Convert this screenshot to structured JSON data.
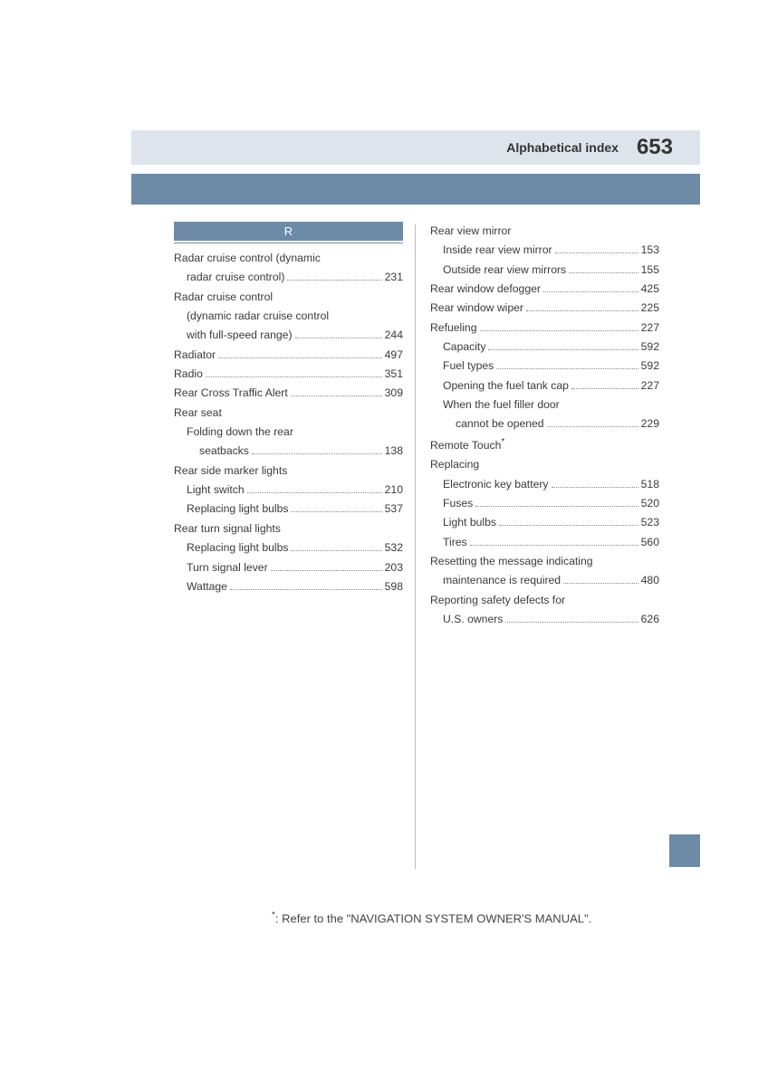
{
  "colors": {
    "header_bg": "#dde4eb",
    "blue_bar": "#6d8aa6",
    "text": "#3a3a3a",
    "divider": "#bbbbbb"
  },
  "header": {
    "title": "Alphabetical index",
    "page_number": "653"
  },
  "section_letter": "R",
  "left_column": [
    {
      "label": "Radar cruise control (dynamic",
      "indent": 0,
      "page": ""
    },
    {
      "label": "radar cruise control)",
      "indent": 1,
      "page": "231"
    },
    {
      "label": "Radar cruise control",
      "indent": 0,
      "page": ""
    },
    {
      "label": "(dynamic radar cruise control",
      "indent": 1,
      "page": ""
    },
    {
      "label": "with full-speed range)",
      "indent": 1,
      "page": "244"
    },
    {
      "label": "Radiator",
      "indent": 0,
      "page": "497"
    },
    {
      "label": "Radio",
      "indent": 0,
      "page": "351"
    },
    {
      "label": "Rear Cross Traffic Alert",
      "indent": 0,
      "page": "309"
    },
    {
      "label": "Rear seat",
      "indent": 0,
      "page": ""
    },
    {
      "label": "Folding down the rear",
      "indent": 1,
      "page": ""
    },
    {
      "label": "seatbacks",
      "indent": 2,
      "page": "138"
    },
    {
      "label": "Rear side marker lights",
      "indent": 0,
      "page": ""
    },
    {
      "label": "Light switch",
      "indent": 1,
      "page": "210"
    },
    {
      "label": "Replacing light bulbs",
      "indent": 1,
      "page": "537"
    },
    {
      "label": "Rear turn signal lights",
      "indent": 0,
      "page": ""
    },
    {
      "label": "Replacing light bulbs",
      "indent": 1,
      "page": "532"
    },
    {
      "label": "Turn signal lever",
      "indent": 1,
      "page": "203"
    },
    {
      "label": "Wattage",
      "indent": 1,
      "page": "598"
    }
  ],
  "right_column": [
    {
      "label": "Rear view mirror",
      "indent": 0,
      "page": ""
    },
    {
      "label": "Inside rear view mirror",
      "indent": 1,
      "page": "153"
    },
    {
      "label": "Outside rear view mirrors",
      "indent": 1,
      "page": "155"
    },
    {
      "label": "Rear window defogger",
      "indent": 0,
      "page": "425"
    },
    {
      "label": "Rear window wiper",
      "indent": 0,
      "page": "225"
    },
    {
      "label": "Refueling",
      "indent": 0,
      "page": "227"
    },
    {
      "label": "Capacity",
      "indent": 1,
      "page": "592"
    },
    {
      "label": "Fuel types",
      "indent": 1,
      "page": "592"
    },
    {
      "label": "Opening the fuel tank cap",
      "indent": 1,
      "page": "227"
    },
    {
      "label": "When the fuel filler door",
      "indent": 1,
      "page": ""
    },
    {
      "label": "cannot be opened",
      "indent": 2,
      "page": "229"
    },
    {
      "label": "Remote Touch",
      "indent": 0,
      "page": "",
      "asterisk": true
    },
    {
      "label": "Replacing",
      "indent": 0,
      "page": ""
    },
    {
      "label": "Electronic key battery",
      "indent": 1,
      "page": "518"
    },
    {
      "label": "Fuses",
      "indent": 1,
      "page": "520"
    },
    {
      "label": "Light bulbs",
      "indent": 1,
      "page": "523"
    },
    {
      "label": "Tires",
      "indent": 1,
      "page": "560"
    },
    {
      "label": "Resetting the message indicating",
      "indent": 0,
      "page": ""
    },
    {
      "label": "maintenance is required",
      "indent": 1,
      "page": "480"
    },
    {
      "label": "Reporting safety defects for",
      "indent": 0,
      "page": ""
    },
    {
      "label": "U.S. owners",
      "indent": 1,
      "page": "626"
    }
  ],
  "footnote": ": Refer to the \"NAVIGATION SYSTEM OWNER'S MANUAL\"."
}
